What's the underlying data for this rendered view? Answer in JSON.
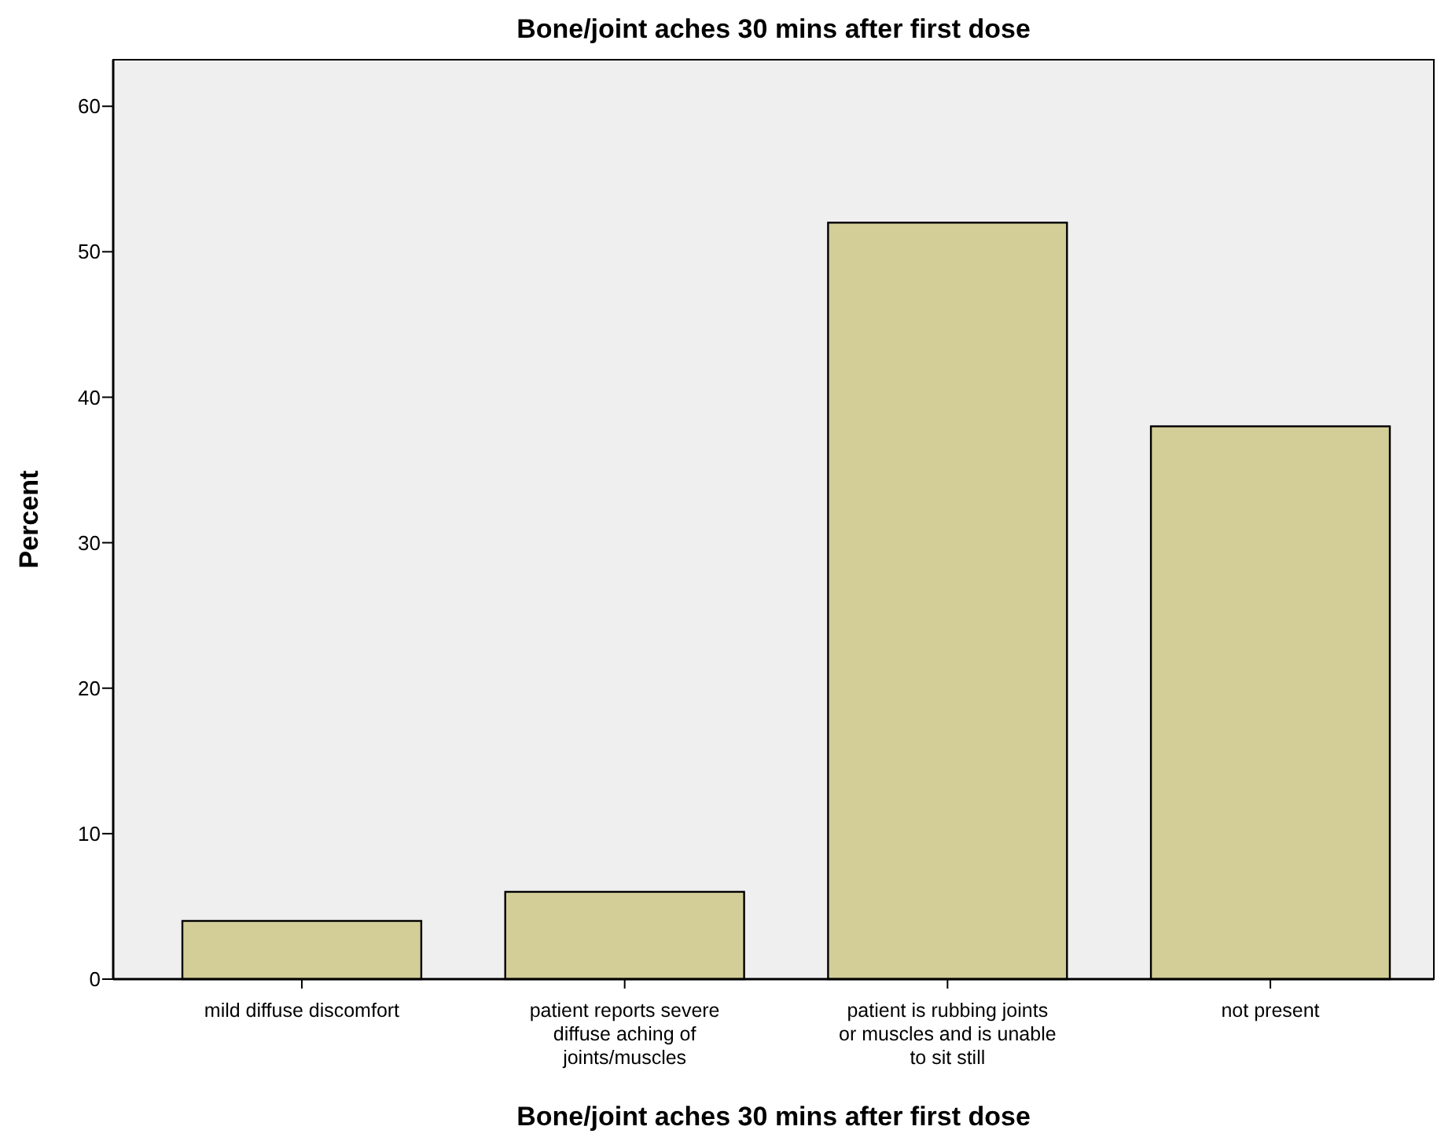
{
  "chart_data": {
    "type": "bar",
    "title": "Bone/joint aches 30 mins after first dose",
    "xlabel": "Bone/joint aches 30 mins after first dose",
    "ylabel": "Percent",
    "categories": [
      "mild diffuse discomfort",
      "patient reports severe diffuse aching of joints/muscles",
      "patient is rubbing joints or muscles and is unable to sit still",
      "not present"
    ],
    "values": [
      4,
      6,
      52,
      38
    ],
    "color": "#d3ce98",
    "ylim": [
      0,
      63.2
    ],
    "yticks": [
      0,
      10,
      20,
      30,
      40,
      50,
      60
    ],
    "grid": false
  }
}
